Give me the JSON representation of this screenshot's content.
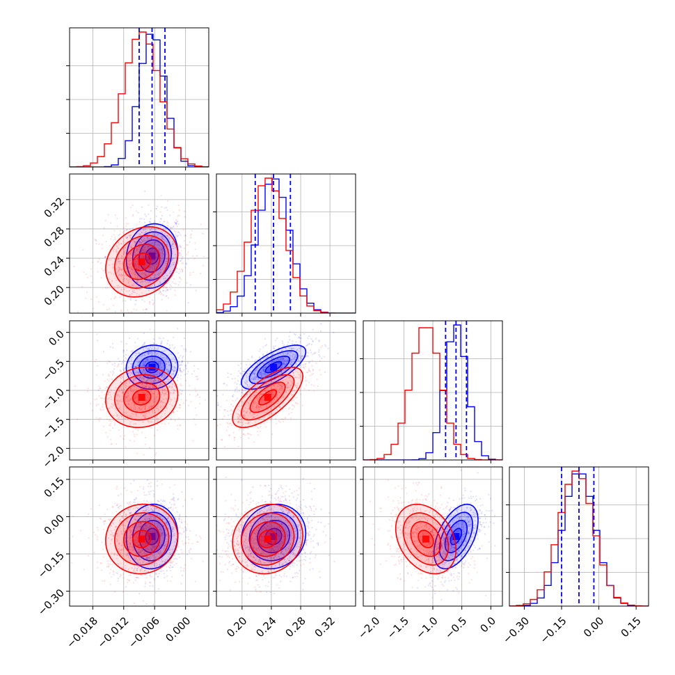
{
  "chart_data": {
    "type": "scatter",
    "title": "",
    "colors": {
      "series_a": "#0000ff",
      "series_b": "#ff0000",
      "grid": "#b0b0b0",
      "frame": "#000000"
    },
    "parameters": [
      {
        "range": [
          -0.0225,
          0.0045
        ],
        "ticks": [
          -0.018,
          -0.012,
          -0.006,
          0.0
        ],
        "tick_labels": [
          "−0.018",
          "−0.012",
          "−0.006",
          "0.000"
        ]
      },
      {
        "range": [
          0.165,
          0.355
        ],
        "ticks": [
          0.2,
          0.24,
          0.28,
          0.32
        ],
        "tick_labels": [
          "0.20",
          "0.24",
          "0.28",
          "0.32"
        ]
      },
      {
        "range": [
          -2.2,
          0.2
        ],
        "ticks": [
          -2.0,
          -1.5,
          -1.0,
          -0.5,
          0.0
        ],
        "tick_labels": [
          "−2.0",
          "−1.5",
          "−1.0",
          "−0.5",
          "0.0"
        ]
      },
      {
        "range": [
          -0.36,
          0.2
        ],
        "ticks": [
          -0.3,
          -0.15,
          0.0,
          0.15
        ],
        "tick_labels": [
          "−0.30",
          "−0.15",
          "0.00",
          "0.15"
        ]
      }
    ],
    "series": [
      {
        "name": "",
        "color": "#0000ff",
        "mean": [
          -0.0065,
          0.243,
          -0.6,
          -0.08
        ],
        "std": [
          0.0025,
          0.022,
          0.19,
          0.065
        ],
        "corr": [
          [
            1,
            0.1,
            0.05,
            0.05
          ],
          [
            0.1,
            1,
            0.7,
            0.1
          ],
          [
            0.05,
            0.7,
            1,
            0.5
          ],
          [
            0.05,
            0.1,
            0.5,
            1
          ]
        ],
        "quantiles": [
          [
            -0.009,
            -0.0065,
            -0.004
          ],
          [
            0.218,
            0.243,
            0.266
          ],
          [
            -0.78,
            -0.6,
            -0.42
          ],
          [
            -0.15,
            -0.08,
            -0.02
          ]
        ]
      },
      {
        "name": "",
        "color": "#ff0000",
        "mean": [
          -0.0085,
          0.235,
          -1.12,
          -0.09
        ],
        "std": [
          0.0035,
          0.024,
          0.26,
          0.07
        ],
        "corr": [
          [
            1,
            0.2,
            0.1,
            0.05
          ],
          [
            0.2,
            1,
            0.7,
            0.1
          ],
          [
            0.1,
            0.7,
            1,
            -0.3
          ],
          [
            0.05,
            0.1,
            -0.3,
            1
          ]
        ]
      }
    ],
    "contour_levels_sigma": [
      0.5,
      1.0,
      1.5,
      2.0
    ],
    "hist_bins": 20,
    "grid": true,
    "legend": "none"
  }
}
